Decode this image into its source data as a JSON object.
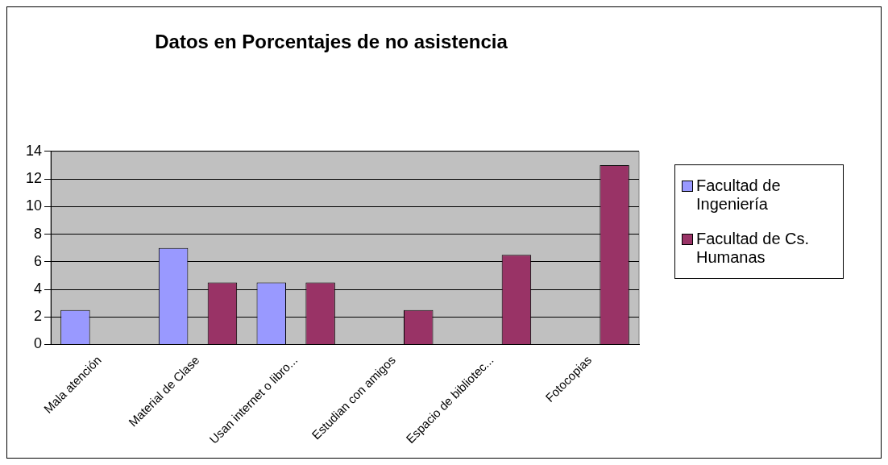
{
  "chart_data": {
    "type": "bar",
    "title": "Datos en Porcentajes de no asistencia",
    "categories": [
      "Mala atención",
      "Material de Clase",
      "Usan internet o libro...",
      "Estudian con amigos",
      "Espacio de bibliotec...",
      "Fotocopias"
    ],
    "series": [
      {
        "name": "Facultad de Ingeniería",
        "color": "#9999ff",
        "values": [
          2.5,
          7,
          4.5,
          0,
          0,
          0
        ]
      },
      {
        "name": "Facultad de Cs. Humanas",
        "color": "#993366",
        "values": [
          0,
          4.5,
          4.5,
          2.5,
          6.5,
          13
        ]
      }
    ],
    "ylim": [
      0,
      14
    ],
    "yticks": [
      0,
      2,
      4,
      6,
      8,
      10,
      12,
      14
    ],
    "grid": "y",
    "legend": "right"
  }
}
